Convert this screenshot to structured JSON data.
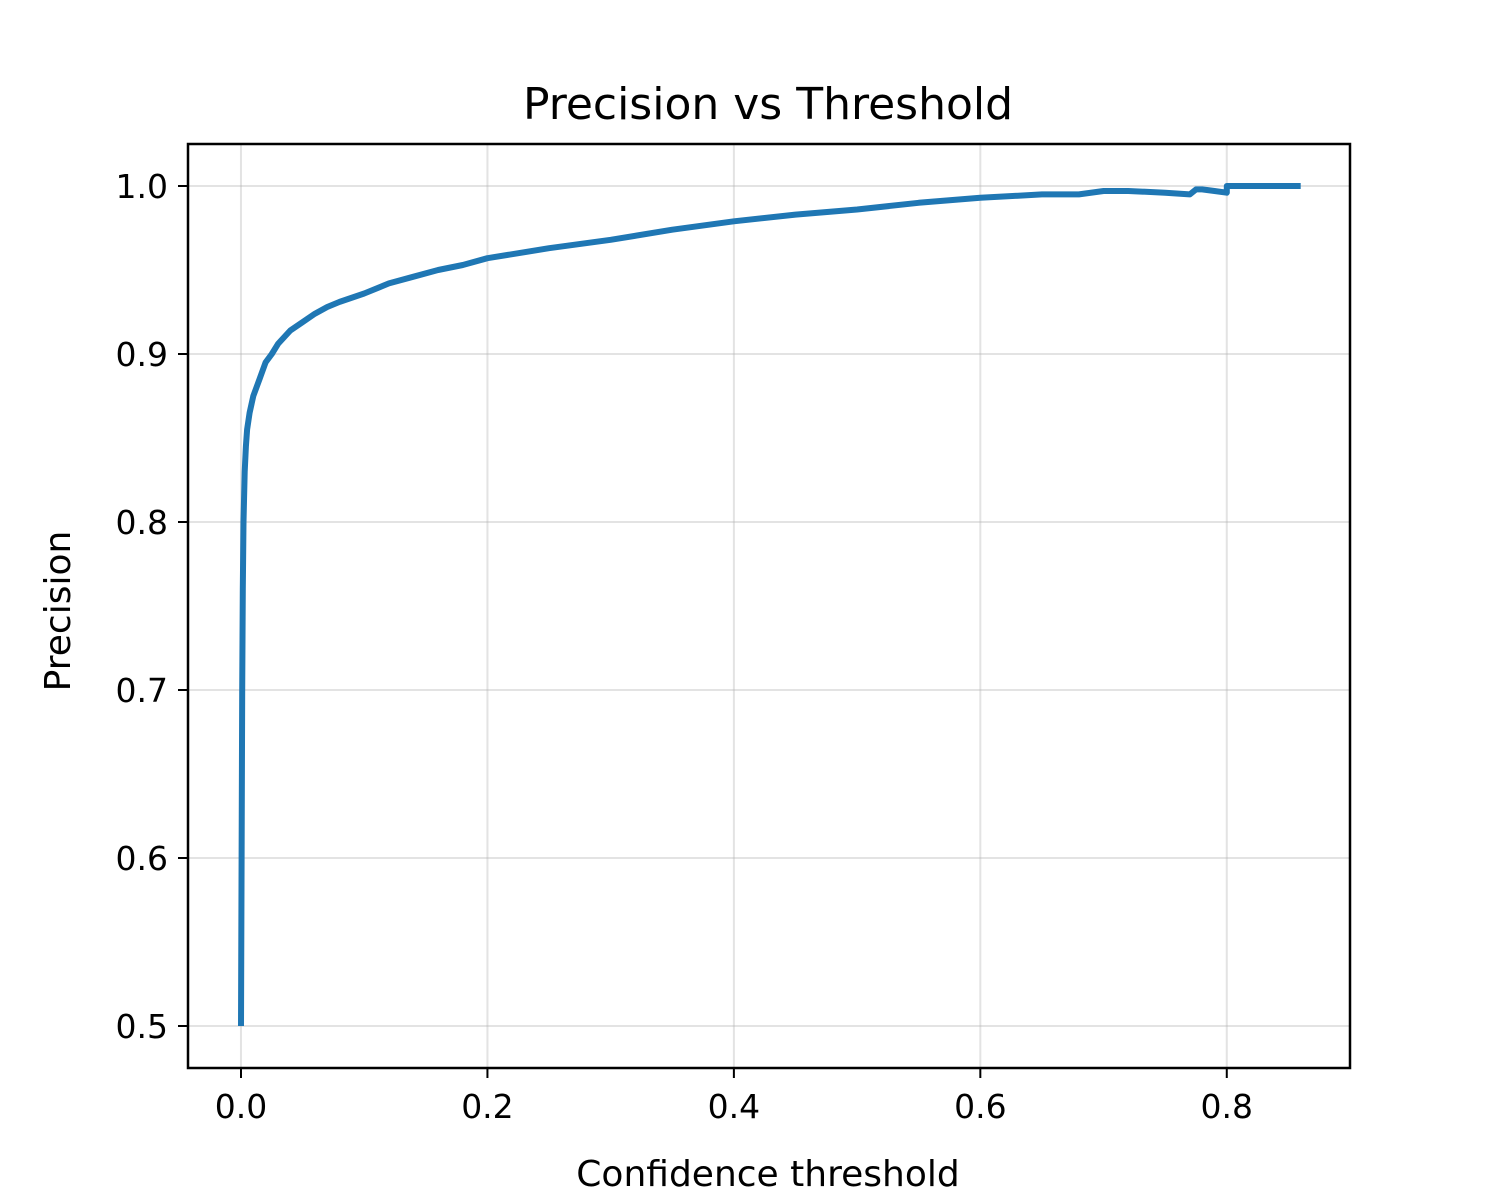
{
  "chart_data": {
    "type": "line",
    "title": "Precision vs Threshold",
    "xlabel": "Confidence threshold",
    "ylabel": "Precision",
    "xlim": [
      -0.043,
      0.9
    ],
    "ylim": [
      0.475,
      1.025
    ],
    "xticks": [
      0.0,
      0.2,
      0.4,
      0.6,
      0.8
    ],
    "xtick_labels": [
      "0.0",
      "0.2",
      "0.4",
      "0.6",
      "0.8"
    ],
    "yticks": [
      0.5,
      0.6,
      0.7,
      0.8,
      0.9,
      1.0
    ],
    "ytick_labels": [
      "0.5",
      "0.6",
      "0.7",
      "0.8",
      "0.9",
      "1.0"
    ],
    "grid": true,
    "series": [
      {
        "color": "#1f77b4",
        "x": [
          0.0,
          0.0005,
          0.001,
          0.0015,
          0.002,
          0.003,
          0.004,
          0.005,
          0.007,
          0.01,
          0.015,
          0.02,
          0.025,
          0.03,
          0.04,
          0.05,
          0.06,
          0.07,
          0.08,
          0.1,
          0.12,
          0.14,
          0.16,
          0.18,
          0.2,
          0.25,
          0.3,
          0.35,
          0.4,
          0.45,
          0.5,
          0.55,
          0.6,
          0.65,
          0.68,
          0.7,
          0.72,
          0.75,
          0.77,
          0.775,
          0.78,
          0.79,
          0.8,
          0.8,
          0.805,
          0.83,
          0.86
        ],
        "y": [
          0.5,
          0.6,
          0.7,
          0.76,
          0.8,
          0.83,
          0.845,
          0.855,
          0.865,
          0.875,
          0.885,
          0.895,
          0.9,
          0.906,
          0.914,
          0.919,
          0.924,
          0.928,
          0.931,
          0.936,
          0.942,
          0.946,
          0.95,
          0.953,
          0.957,
          0.963,
          0.968,
          0.974,
          0.979,
          0.983,
          0.986,
          0.99,
          0.993,
          0.995,
          0.995,
          0.997,
          0.997,
          0.996,
          0.995,
          0.998,
          0.998,
          0.997,
          0.996,
          1.0,
          1.0,
          1.0,
          1.0
        ]
      }
    ]
  }
}
